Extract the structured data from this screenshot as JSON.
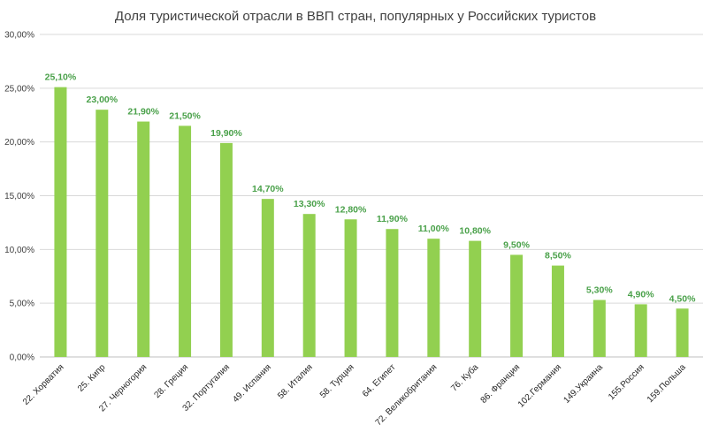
{
  "chart_data": {
    "type": "bar",
    "title": "Доля туристической отрасли в ВВП стран, популярных у Российских туристов",
    "xlabel": "",
    "ylabel": "",
    "ylim": [
      0,
      30
    ],
    "yticks": [
      0,
      5,
      10,
      15,
      20,
      25,
      30
    ],
    "ytick_labels": [
      "0,00%",
      "5,00%",
      "10,00%",
      "15,00%",
      "20,00%",
      "25,00%",
      "30,00%"
    ],
    "grid": true,
    "legend": "none",
    "bar_color": "#92d050",
    "label_color": "#4aa14a",
    "categories": [
      "22. Хорватия",
      "25. Кипр",
      "27. Черногория",
      "28. Греция",
      "32. Португалия",
      "49. Испания",
      "58. Италия",
      "58. Турция",
      "64. Египет",
      "72. Великобритания",
      "76. Куба",
      "86. Франция",
      "102.Германия",
      "149.Украина",
      "155.Россия",
      "159.Польша"
    ],
    "values": [
      25.1,
      23.0,
      21.9,
      21.5,
      19.9,
      14.7,
      13.3,
      12.8,
      11.9,
      11.0,
      10.8,
      9.5,
      8.5,
      5.3,
      4.9,
      4.5
    ],
    "value_labels": [
      "25,10%",
      "23,00%",
      "21,90%",
      "21,50%",
      "19,90%",
      "14,70%",
      "13,30%",
      "12,80%",
      "11,90%",
      "11,00%",
      "10,80%",
      "9,50%",
      "8,50%",
      "5,30%",
      "4,90%",
      "4,50%"
    ]
  }
}
